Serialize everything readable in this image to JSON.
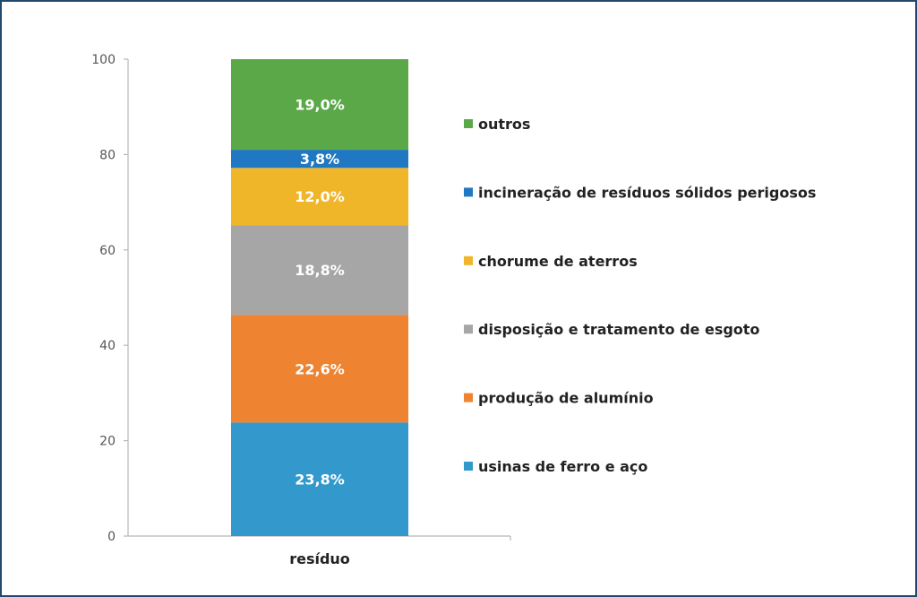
{
  "chart_data": {
    "type": "bar",
    "stacked": true,
    "categories": [
      "resíduo"
    ],
    "ylim": [
      0,
      100
    ],
    "yticks": [
      0,
      20,
      40,
      60,
      80,
      100
    ],
    "ytick_labels": [
      "0",
      "20",
      "40",
      "60",
      "80",
      "100"
    ],
    "legend_placement": "right",
    "series": [
      {
        "name": "usinas de ferro e aço",
        "values": [
          23.8
        ],
        "label": "23,8%",
        "color": "#3399cc"
      },
      {
        "name": "produção de alumínio",
        "values": [
          22.6
        ],
        "label": "22,6%",
        "color": "#ee8432"
      },
      {
        "name": "disposição e tratamento de esgoto",
        "values": [
          18.8
        ],
        "label": "18,8%",
        "color": "#a6a6a6"
      },
      {
        "name": "chorume de aterros",
        "values": [
          12.0
        ],
        "label": "12,0%",
        "color": "#f0b62a"
      },
      {
        "name": "incineração de resíduos sólidos perigosos",
        "values": [
          3.8
        ],
        "label": "3,8%",
        "color": "#1f78c1"
      },
      {
        "name": "outros",
        "values": [
          19.0
        ],
        "label": "19,0%",
        "color": "#5aa848"
      }
    ]
  }
}
